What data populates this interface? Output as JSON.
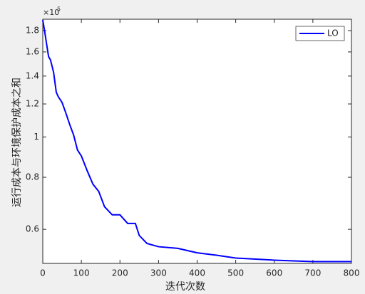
{
  "chart_data": {
    "type": "line",
    "xlabel": "迭代次数",
    "ylabel": "运行成本与环境保护成本之和",
    "y_multiplier": "×10",
    "y_multiplier_exponent": "5",
    "x": [
      0,
      5,
      10,
      15,
      20,
      28,
      35,
      40,
      50,
      60,
      70,
      80,
      90,
      100,
      115,
      130,
      145,
      160,
      180,
      200,
      220,
      240,
      250,
      270,
      300,
      350,
      400,
      450,
      500,
      600,
      700,
      800
    ],
    "series": [
      {
        "name": "LO",
        "color": "#0000ff",
        "values": [
          1.91,
          1.79,
          1.67,
          1.56,
          1.53,
          1.43,
          1.28,
          1.25,
          1.21,
          1.14,
          1.07,
          1.01,
          0.93,
          0.9,
          0.83,
          0.77,
          0.74,
          0.68,
          0.65,
          0.65,
          0.62,
          0.62,
          0.58,
          0.555,
          0.545,
          0.54,
          0.527,
          0.52,
          0.512,
          0.506,
          0.502,
          0.502
        ]
      }
    ],
    "xlim": [
      0,
      800
    ],
    "xticks": [
      0,
      100,
      200,
      300,
      400,
      500,
      600,
      700,
      800
    ],
    "ylim": [
      0.497,
      1.917
    ],
    "yticks": [
      0.6,
      0.8,
      1,
      1.2,
      1.4,
      1.6,
      1.8
    ],
    "ylog": true,
    "legend": "top-right"
  }
}
